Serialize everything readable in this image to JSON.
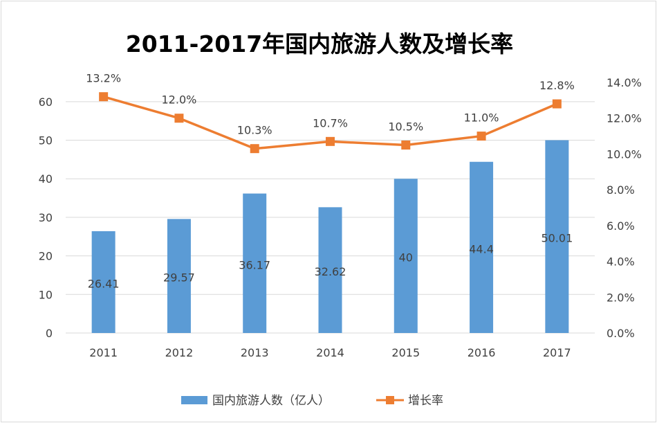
{
  "chart_data": {
    "type": "bar+line",
    "title": "2011-2017年国内旅游人数及增长率",
    "categories": [
      "2011",
      "2012",
      "2013",
      "2014",
      "2015",
      "2016",
      "2017"
    ],
    "series": [
      {
        "name": "国内旅游人数（亿人）",
        "type": "bar",
        "axis": "left",
        "color": "#5b9bd5",
        "values": [
          26.41,
          29.57,
          36.17,
          32.62,
          40,
          44.4,
          50.01
        ],
        "labels": [
          "26.41",
          "29.57",
          "36.17",
          "32.62",
          "40",
          "44.4",
          "50.01"
        ]
      },
      {
        "name": "增长率",
        "type": "line",
        "axis": "right",
        "color": "#ed7d31",
        "values": [
          13.2,
          12.0,
          10.3,
          10.7,
          10.5,
          11.0,
          12.8
        ],
        "labels": [
          "13.2%",
          "12.0%",
          "10.3%",
          "10.7%",
          "10.5%",
          "11.0%",
          "12.8%"
        ]
      }
    ],
    "left_axis": {
      "ylim": [
        0,
        65
      ],
      "ticks": [
        "0",
        "10",
        "20",
        "30",
        "40",
        "50",
        "60"
      ]
    },
    "right_axis": {
      "ylim": [
        0,
        14
      ],
      "ticks": [
        "0.0%",
        "2.0%",
        "4.0%",
        "6.0%",
        "8.0%",
        "10.0%",
        "12.0%",
        "14.0%"
      ]
    },
    "grid": true,
    "legend": "bottom"
  }
}
